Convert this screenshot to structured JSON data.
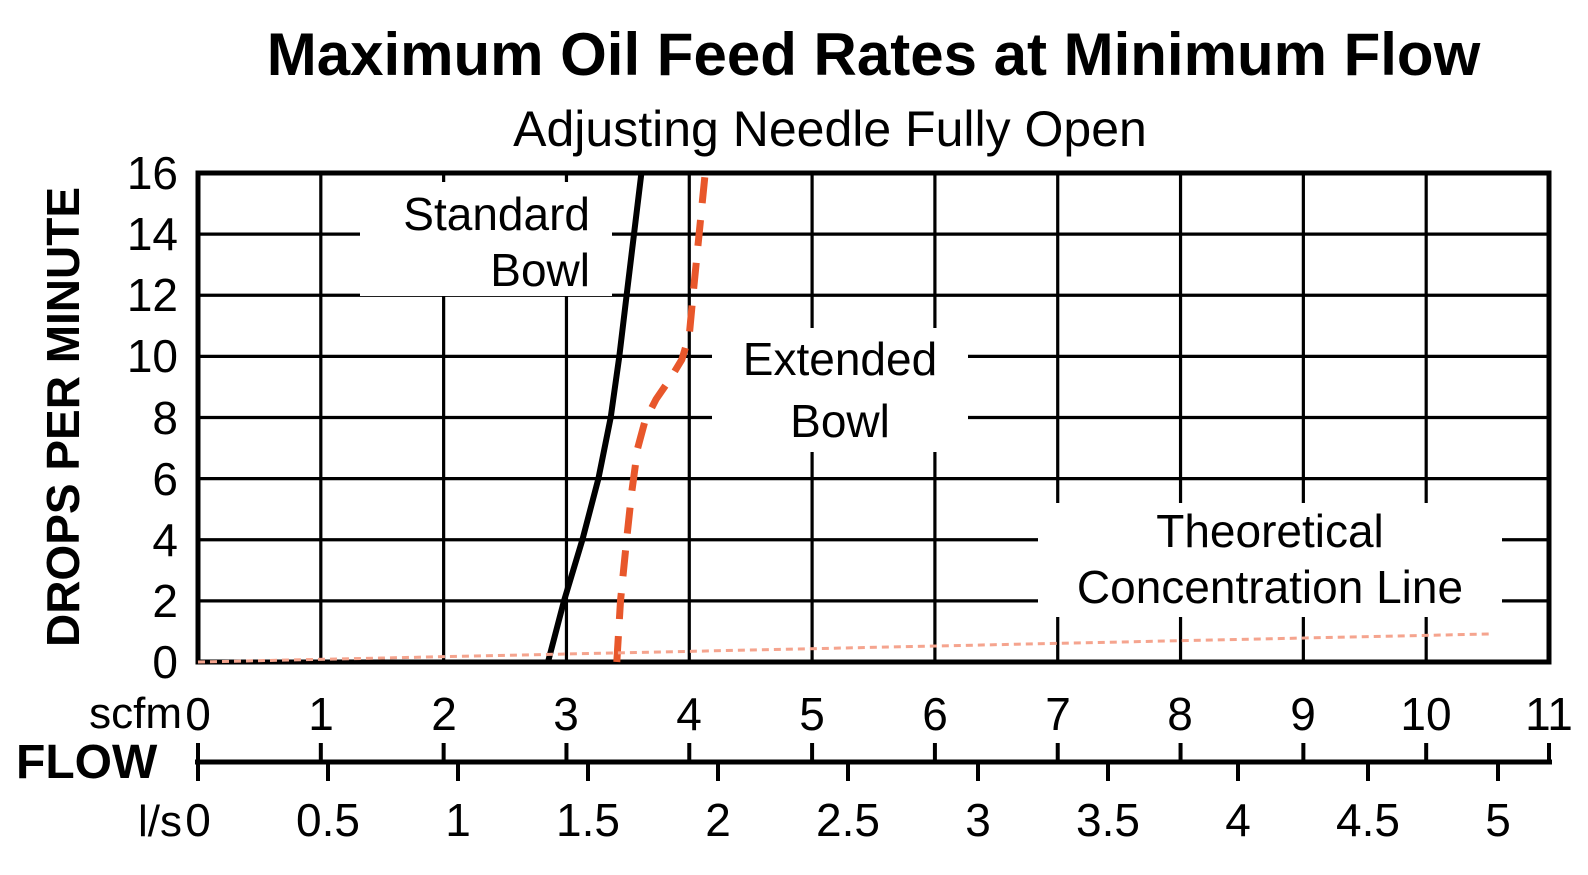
{
  "title": "Maximum Oil Feed Rates at Minimum Flow",
  "subtitle": "Adjusting Needle Fully Open",
  "y_axis": {
    "label": "DROPS PER MINUTE",
    "ticks": [
      "16",
      "14",
      "12",
      "10",
      "8",
      "6",
      "4",
      "2",
      "0"
    ]
  },
  "x_axis": {
    "label": "FLOW",
    "scfm_unit": "scfm",
    "ls_unit": "l/s",
    "scfm_ticks": [
      "0",
      "1",
      "2",
      "3",
      "4",
      "5",
      "6",
      "7",
      "8",
      "9",
      "10",
      "11"
    ],
    "ls_ticks": [
      "0",
      "0.5",
      "1",
      "1.5",
      "2",
      "2.5",
      "3",
      "3.5",
      "4",
      "4.5",
      "5"
    ]
  },
  "annotations": {
    "standard": [
      "Standard",
      "Bowl"
    ],
    "extended": [
      "Extended",
      "Bowl"
    ],
    "theoretical": [
      "Theoretical",
      "Concentration Line"
    ]
  },
  "colors": {
    "ink": "#000000",
    "extended_curve": "#E8572B",
    "theoretical_line": "#F5A48E"
  },
  "chart_data": {
    "type": "line",
    "title": "Maximum Oil Feed Rates at Minimum Flow",
    "subtitle": "Adjusting Needle Fully Open",
    "ylabel": "DROPS PER MINUTE",
    "xlabel": "FLOW",
    "x_units": [
      {
        "name": "scfm",
        "min": 0,
        "max": 11,
        "tick_step": 1
      },
      {
        "name": "l/s",
        "min": 0,
        "max": 5,
        "tick_step": 0.5
      }
    ],
    "ylim": [
      0,
      16
    ],
    "y_tick_step": 2,
    "grid": true,
    "scfm_tick_values": [
      0,
      1,
      2,
      3,
      4,
      5,
      6,
      7,
      8,
      9,
      10,
      11
    ],
    "ls_tick_values": [
      0,
      0.5,
      1,
      1.5,
      2,
      2.5,
      3,
      3.5,
      4,
      4.5,
      5
    ],
    "y_tick_values": [
      0,
      2,
      4,
      6,
      8,
      10,
      12,
      14,
      16
    ],
    "series": [
      {
        "name": "Standard Bowl",
        "style": "solid",
        "color": "#000000",
        "x_unit": "scfm",
        "points": [
          [
            2.85,
            0
          ],
          [
            2.98,
            2
          ],
          [
            3.13,
            4
          ],
          [
            3.26,
            6
          ],
          [
            3.36,
            8
          ],
          [
            3.43,
            10
          ],
          [
            3.49,
            12
          ],
          [
            3.55,
            14
          ],
          [
            3.61,
            16
          ]
        ]
      },
      {
        "name": "Extended Bowl",
        "style": "dashed",
        "color": "#E8572B",
        "x_unit": "scfm",
        "points": [
          [
            3.41,
            0
          ],
          [
            3.44,
            2
          ],
          [
            3.49,
            4
          ],
          [
            3.53,
            5.5
          ],
          [
            3.58,
            7
          ],
          [
            3.64,
            7.9
          ],
          [
            3.73,
            8.6
          ],
          [
            3.85,
            9.3
          ],
          [
            3.94,
            9.9
          ],
          [
            4.0,
            10.7
          ],
          [
            4.03,
            12
          ],
          [
            4.08,
            14
          ],
          [
            4.13,
            16
          ]
        ]
      },
      {
        "name": "Theoretical Concentration Line",
        "style": "dotted",
        "color": "#F5A48E",
        "x_unit": "scfm",
        "points": [
          [
            0,
            0
          ],
          [
            10.55,
            0.92
          ]
        ]
      }
    ]
  }
}
